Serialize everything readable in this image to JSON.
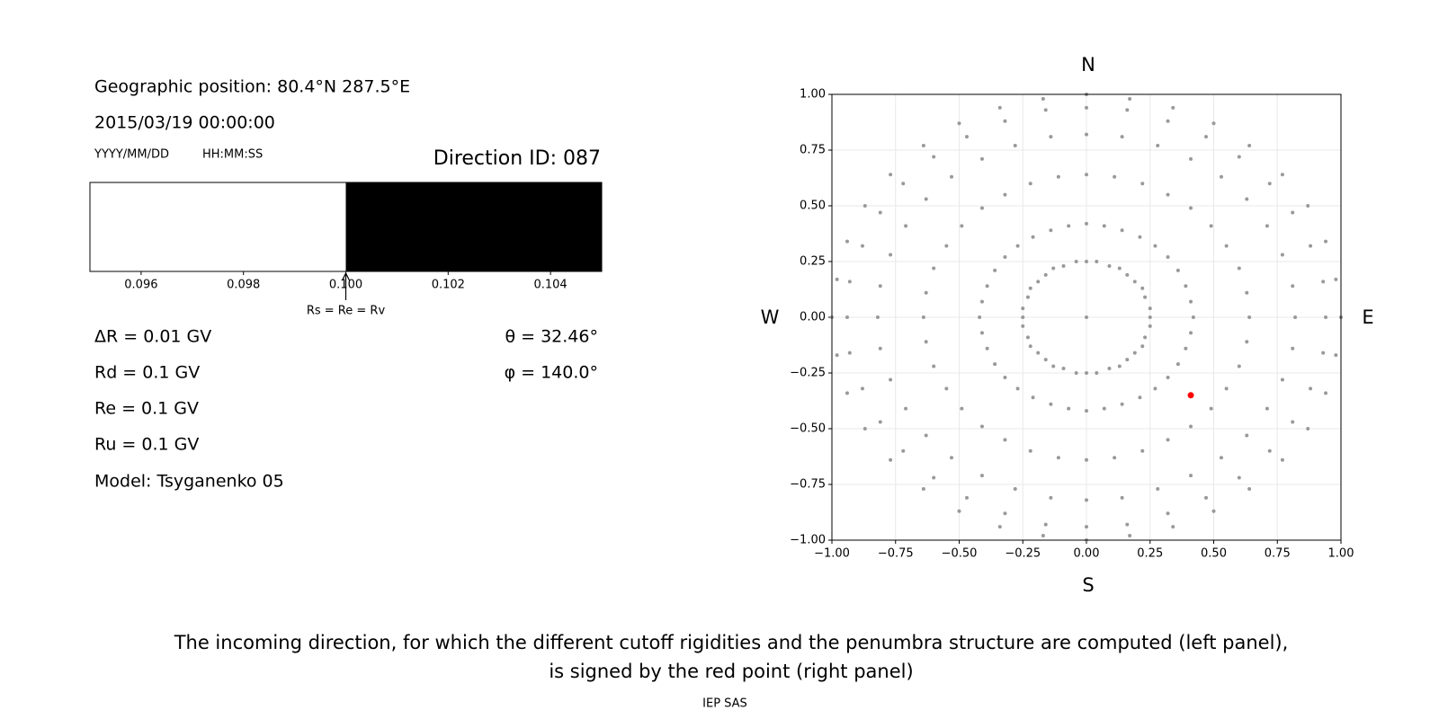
{
  "left_info": {
    "geo_position": "Geographic position: 80.4°N 287.5°E",
    "datetime": "2015/03/19 00:00:00",
    "date_format": "YYYY/MM/DD",
    "time_format": "HH:MM:SS",
    "direction_id": "Direction ID: 087",
    "stats_left": [
      "ΔR = 0.01 GV",
      "Rd = 0.1 GV",
      "Re = 0.1 GV",
      "Ru = 0.1 GV",
      "Model: Tsyganenko 05"
    ],
    "stats_right": [
      "θ = 32.46°",
      "φ = 140.0°"
    ]
  },
  "chart_data": [
    {
      "type": "band",
      "segments": [
        {
          "color": "#ffffff",
          "x": [
            0.095,
            0.1
          ]
        },
        {
          "color": "#000000",
          "x": [
            0.1,
            0.105
          ]
        }
      ],
      "xlim": [
        0.095,
        0.105
      ],
      "xticks": [
        0.096,
        0.098,
        {
          "value": 0.1,
          "label": "0.100"
        },
        0.102,
        0.104
      ],
      "annotation": {
        "text": "Rs = Re = Rv",
        "x": 0.1
      }
    },
    {
      "type": "scatter",
      "compass": {
        "top": "N",
        "bottom": "S",
        "left": "W",
        "right": "E"
      },
      "grid": true,
      "xlim": [
        -1,
        1
      ],
      "ylim": [
        -1,
        1
      ],
      "xticks": [
        {
          "value": -1,
          "label": "−1.00"
        },
        {
          "value": -0.75,
          "label": "−0.75"
        },
        {
          "value": -0.5,
          "label": "−0.50"
        },
        {
          "value": -0.25,
          "label": "−0.25"
        },
        {
          "value": 0,
          "label": "0.00"
        },
        {
          "value": 0.25,
          "label": "0.25"
        },
        {
          "value": 0.5,
          "label": "0.50"
        },
        {
          "value": 0.75,
          "label": "0.75"
        },
        {
          "value": 1,
          "label": "1.00"
        }
      ],
      "yticks": [
        {
          "value": -1,
          "label": "−1.00"
        },
        {
          "value": -0.75,
          "label": "−0.75"
        },
        {
          "value": -0.5,
          "label": "−0.50"
        },
        {
          "value": -0.25,
          "label": "−0.25"
        },
        {
          "value": 0,
          "label": "0.00"
        },
        {
          "value": 0.25,
          "label": "0.25"
        },
        {
          "value": 0.5,
          "label": "0.50"
        },
        {
          "value": 0.75,
          "label": "0.75"
        },
        {
          "value": 1,
          "label": "1.00"
        }
      ],
      "series": [
        {
          "color": "#999999",
          "x": [
            0
          ],
          "y": [
            0
          ]
        },
        {
          "color": "#999999",
          "x": [
            0,
            0.04,
            0.09,
            0.13,
            0.16,
            0.19,
            0.22,
            0.23,
            0.25,
            0.25,
            0.25,
            0.23,
            0.22,
            0.19,
            0.16,
            0.13,
            0.09,
            0.04,
            0,
            -0.04,
            -0.09,
            -0.13,
            -0.16,
            -0.19,
            -0.22,
            -0.23,
            -0.25,
            -0.25,
            -0.25,
            -0.23,
            -0.22,
            -0.19,
            -0.16,
            -0.13,
            -0.09,
            -0.04
          ],
          "y": [
            0.25,
            0.25,
            0.23,
            0.22,
            0.19,
            0.16,
            0.13,
            0.09,
            0.04,
            0,
            -0.04,
            -0.09,
            -0.13,
            -0.16,
            -0.19,
            -0.22,
            -0.23,
            -0.25,
            -0.25,
            -0.25,
            -0.23,
            -0.22,
            -0.19,
            -0.16,
            -0.13,
            -0.09,
            -0.04,
            0,
            0.04,
            0.09,
            0.13,
            0.16,
            0.19,
            0.22,
            0.23,
            0.25
          ]
        },
        {
          "color": "#999999",
          "x": [
            0,
            0.07,
            0.14,
            0.21,
            0.27,
            0.32,
            0.36,
            0.39,
            0.41,
            0.42,
            0.41,
            0.39,
            0.36,
            0.32,
            0.27,
            0.21,
            0.14,
            0.07,
            0,
            -0.07,
            -0.14,
            -0.21,
            -0.27,
            -0.32,
            -0.36,
            -0.39,
            -0.41,
            -0.42,
            -0.41,
            -0.39,
            -0.36,
            -0.32,
            -0.27,
            -0.21,
            -0.14,
            -0.07
          ],
          "y": [
            0.42,
            0.41,
            0.39,
            0.36,
            0.32,
            0.27,
            0.21,
            0.14,
            0.07,
            0,
            -0.07,
            -0.14,
            -0.21,
            -0.27,
            -0.32,
            -0.36,
            -0.39,
            -0.41,
            -0.42,
            -0.41,
            -0.39,
            -0.36,
            -0.32,
            -0.27,
            -0.21,
            -0.14,
            -0.07,
            0,
            0.07,
            0.14,
            0.21,
            0.27,
            0.32,
            0.36,
            0.39,
            0.41
          ]
        },
        {
          "color": "#999999",
          "x": [
            0,
            0.11,
            0.22,
            0.32,
            0.41,
            0.49,
            0.55,
            0.6,
            0.63,
            0.64,
            0.63,
            0.6,
            0.55,
            0.49,
            0.41,
            0.32,
            0.22,
            0.11,
            0,
            -0.11,
            -0.22,
            -0.32,
            -0.41,
            -0.49,
            -0.55,
            -0.6,
            -0.63,
            -0.64,
            -0.63,
            -0.6,
            -0.55,
            -0.49,
            -0.41,
            -0.32,
            -0.22,
            -0.11
          ],
          "y": [
            0.64,
            0.63,
            0.6,
            0.55,
            0.49,
            0.41,
            0.32,
            0.22,
            0.11,
            0,
            -0.11,
            -0.22,
            -0.32,
            -0.41,
            -0.49,
            -0.55,
            -0.6,
            -0.63,
            -0.64,
            -0.63,
            -0.6,
            -0.55,
            -0.49,
            -0.41,
            -0.32,
            -0.22,
            -0.11,
            0,
            0.11,
            0.22,
            0.32,
            0.41,
            0.49,
            0.55,
            0.6,
            0.63
          ]
        },
        {
          "color": "#999999",
          "x": [
            0,
            0.14,
            0.28,
            0.41,
            0.53,
            0.63,
            0.71,
            0.77,
            0.81,
            0.82,
            0.81,
            0.77,
            0.71,
            0.63,
            0.53,
            0.41,
            0.28,
            0.14,
            0,
            -0.14,
            -0.28,
            -0.41,
            -0.53,
            -0.63,
            -0.71,
            -0.77,
            -0.81,
            -0.82,
            -0.81,
            -0.77,
            -0.71,
            -0.63,
            -0.53,
            -0.41,
            -0.28,
            -0.14
          ],
          "y": [
            0.82,
            0.81,
            0.77,
            0.71,
            0.63,
            0.53,
            0.41,
            0.28,
            0.14,
            0,
            -0.14,
            -0.28,
            -0.41,
            -0.53,
            -0.63,
            -0.71,
            -0.77,
            -0.81,
            -0.82,
            -0.81,
            -0.77,
            -0.71,
            -0.63,
            -0.53,
            -0.41,
            -0.28,
            -0.14,
            0,
            0.14,
            0.28,
            0.41,
            0.53,
            0.63,
            0.71,
            0.77,
            0.81
          ]
        },
        {
          "color": "#999999",
          "x": [
            0,
            0.16,
            0.32,
            0.47,
            0.6,
            0.72,
            0.81,
            0.88,
            0.93,
            0.94,
            0.93,
            0.88,
            0.81,
            0.72,
            0.6,
            0.47,
            0.32,
            0.16,
            0,
            -0.16,
            -0.32,
            -0.47,
            -0.6,
            -0.72,
            -0.81,
            -0.88,
            -0.93,
            -0.94,
            -0.93,
            -0.88,
            -0.81,
            -0.72,
            -0.6,
            -0.47,
            -0.32,
            -0.16
          ],
          "y": [
            0.94,
            0.93,
            0.88,
            0.81,
            0.72,
            0.6,
            0.47,
            0.32,
            0.16,
            0,
            -0.16,
            -0.32,
            -0.47,
            -0.6,
            -0.72,
            -0.81,
            -0.88,
            -0.93,
            -0.94,
            -0.93,
            -0.88,
            -0.81,
            -0.72,
            -0.6,
            -0.47,
            -0.32,
            -0.16,
            0,
            0.16,
            0.32,
            0.47,
            0.6,
            0.72,
            0.81,
            0.88,
            0.93
          ]
        },
        {
          "color": "#999999",
          "x": [
            0,
            0.17,
            0.34,
            0.5,
            0.64,
            0.77,
            0.87,
            0.94,
            0.98,
            1,
            0.98,
            0.94,
            0.87,
            0.77,
            0.64,
            0.5,
            0.34,
            0.17,
            0,
            -0.17,
            -0.34,
            -0.5,
            -0.64,
            -0.77,
            -0.87,
            -0.94,
            -0.98,
            -1,
            -0.98,
            -0.94,
            -0.87,
            -0.77,
            -0.64,
            -0.5,
            -0.34,
            -0.17
          ],
          "y": [
            1,
            0.98,
            0.94,
            0.87,
            0.77,
            0.64,
            0.5,
            0.34,
            0.17,
            0,
            -0.17,
            -0.34,
            -0.5,
            -0.64,
            -0.77,
            -0.87,
            -0.94,
            -0.98,
            -1,
            -0.98,
            -0.94,
            -0.87,
            -0.77,
            -0.64,
            -0.5,
            -0.34,
            -0.17,
            0,
            0.17,
            0.34,
            0.5,
            0.64,
            0.77,
            0.87,
            0.94,
            0.98
          ]
        },
        {
          "color": "#ff0000",
          "x": [
            0.41
          ],
          "y": [
            -0.35
          ]
        }
      ]
    }
  ],
  "caption": [
    "The incoming direction, for which the different cutoff rigidities and the penumbra structure are computed (left panel),",
    "is signed by the red point (right panel)"
  ],
  "footer": "IEP SAS"
}
